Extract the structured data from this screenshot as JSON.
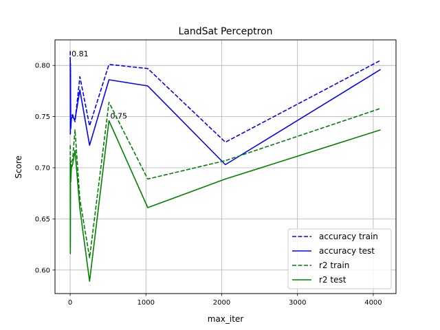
{
  "chart_data": {
    "type": "line",
    "title": "LandSat Perceptron",
    "xlabel": "max_iter",
    "ylabel": "Score",
    "xlim": [
      -200,
      4300
    ],
    "ylim": [
      0.577,
      0.825
    ],
    "xticks": [
      0,
      1000,
      2000,
      3000,
      4000
    ],
    "xtick_labels": [
      "0",
      "1000",
      "2000",
      "3000",
      "4000"
    ],
    "yticks": [
      0.6,
      0.65,
      0.7,
      0.75,
      0.8
    ],
    "ytick_labels": [
      "0.60",
      "0.65",
      "0.70",
      "0.75",
      "0.80"
    ],
    "grid": true,
    "legend_position": "lower-right",
    "x": [
      1,
      2,
      4,
      8,
      16,
      32,
      64,
      128,
      256,
      512,
      1024,
      2048,
      4096
    ],
    "series": [
      {
        "name": "accuracy train",
        "color": "#0000ff",
        "style": "dashed",
        "values": [
          0.814,
          0.733,
          0.802,
          0.74,
          0.75,
          0.752,
          0.745,
          0.789,
          0.741,
          0.801,
          0.797,
          0.725,
          0.805
        ]
      },
      {
        "name": "accuracy test",
        "color": "#0000ff",
        "style": "solid",
        "values": [
          0.807,
          0.733,
          0.795,
          0.738,
          0.748,
          0.75,
          0.747,
          0.776,
          0.722,
          0.786,
          0.78,
          0.703,
          0.796
        ]
      },
      {
        "name": "r2 train",
        "color": "#008000",
        "style": "dashed",
        "values": [
          0.722,
          0.621,
          0.706,
          0.69,
          0.706,
          0.708,
          0.737,
          0.669,
          0.612,
          0.764,
          0.689,
          0.707,
          0.758
        ]
      },
      {
        "name": "r2 test",
        "color": "#008000",
        "style": "solid",
        "values": [
          0.707,
          0.616,
          0.69,
          0.686,
          0.7,
          0.703,
          0.717,
          0.66,
          0.589,
          0.746,
          0.661,
          0.689,
          0.737
        ]
      }
    ],
    "annotations": [
      {
        "text": "0.81",
        "x": 1,
        "y": 0.807
      },
      {
        "text": "0.75",
        "x": 512,
        "y": 0.746
      }
    ]
  }
}
